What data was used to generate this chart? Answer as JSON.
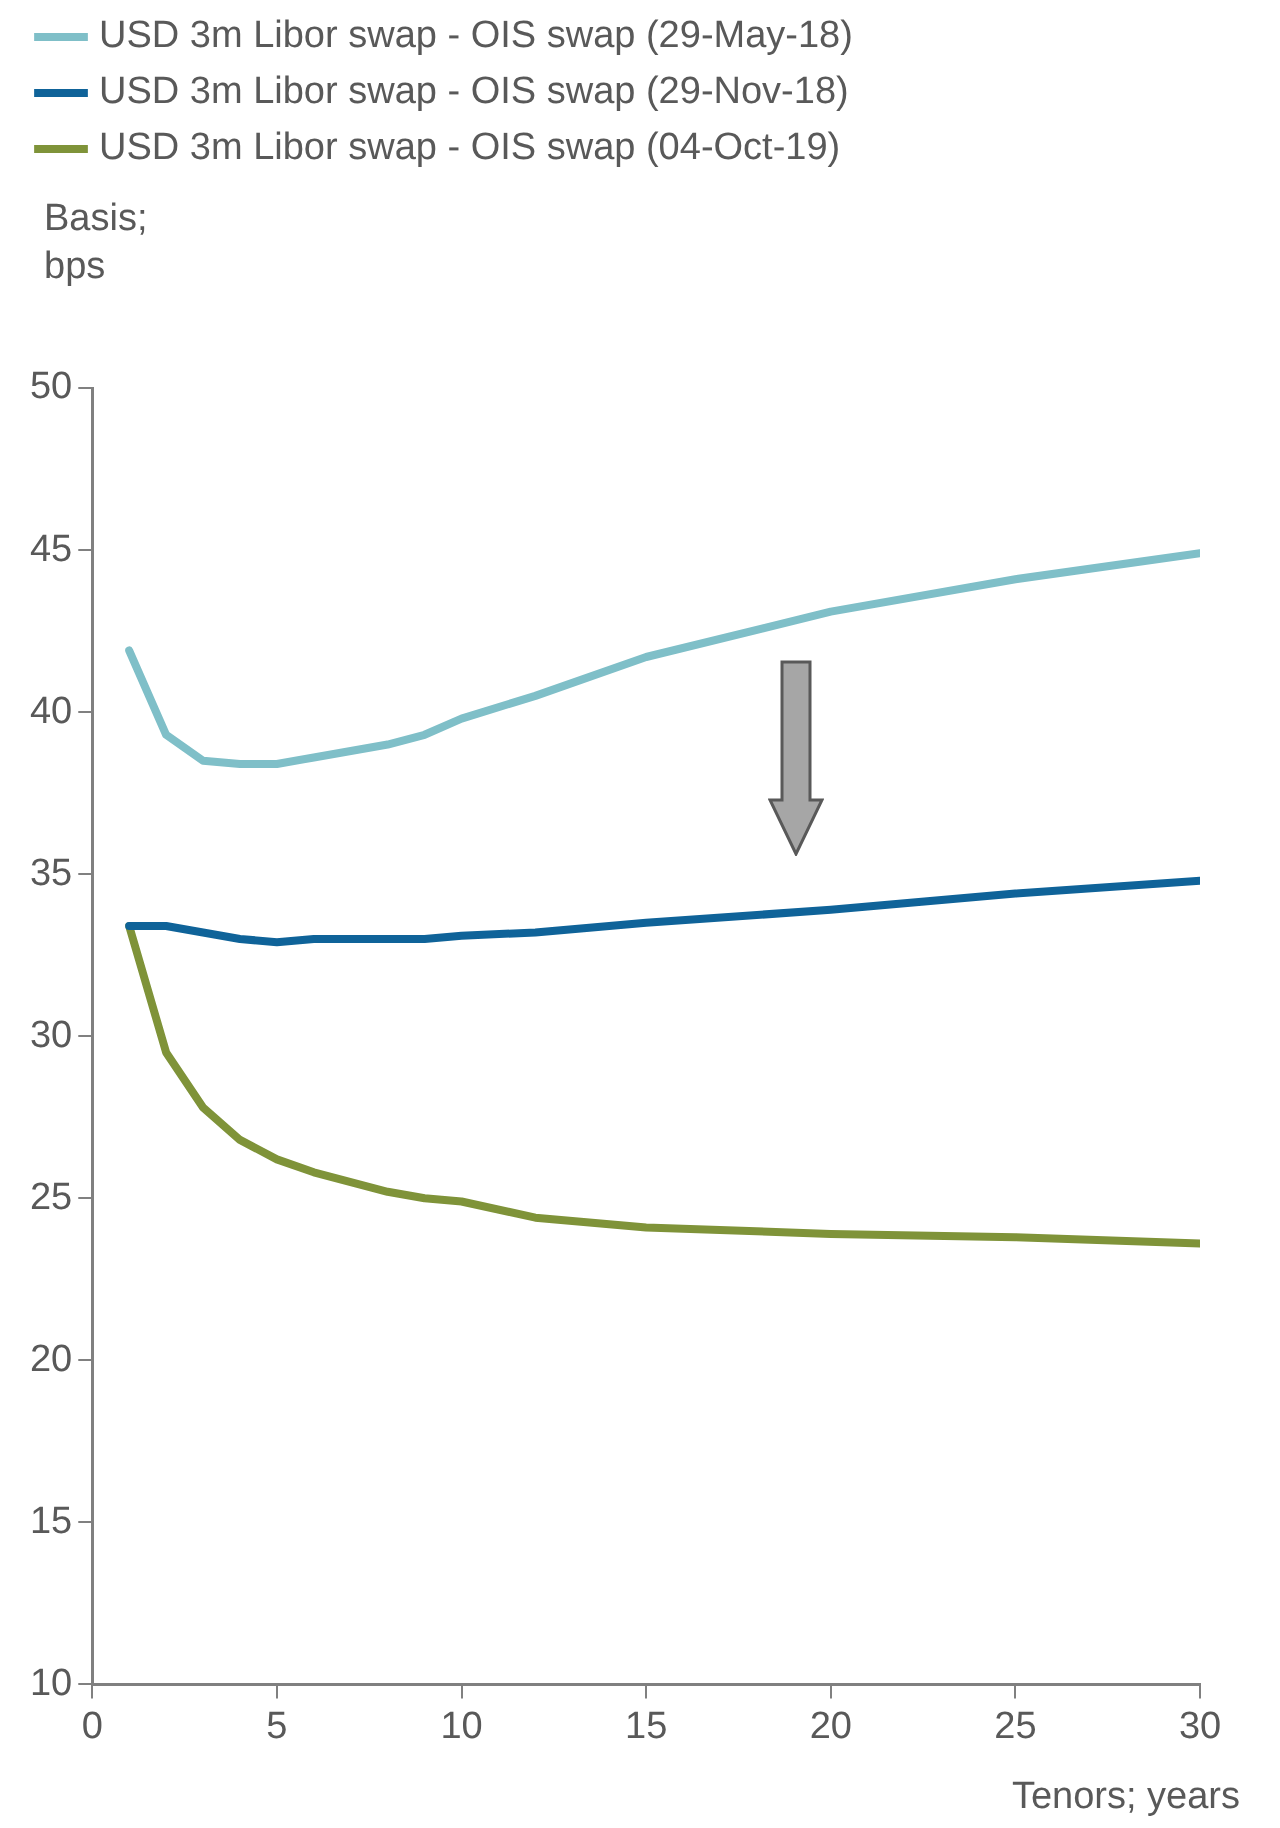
{
  "chart_data": {
    "type": "line",
    "xlabel": "Tenors; years",
    "ylabel": "Basis; bps",
    "x": [
      1,
      2,
      3,
      4,
      5,
      6,
      7,
      8,
      9,
      10,
      12,
      15,
      20,
      25,
      30
    ],
    "series": [
      {
        "name": "USD 3m Libor swap - OIS swap (29-May-18)",
        "color": "#7fbfc8",
        "values": [
          41.9,
          39.3,
          38.5,
          38.4,
          38.4,
          38.6,
          38.8,
          39.0,
          39.3,
          39.8,
          40.5,
          41.7,
          43.1,
          44.1,
          44.9
        ]
      },
      {
        "name": "USD 3m Libor swap - OIS swap (29-Nov-18)",
        "color": "#0f6399",
        "values": [
          33.4,
          33.4,
          33.2,
          33.0,
          32.9,
          33.0,
          33.0,
          33.0,
          33.0,
          33.1,
          33.2,
          33.5,
          33.9,
          34.4,
          34.8
        ]
      },
      {
        "name": "USD 3m Libor swap - OIS swap (04-Oct-19)",
        "color": "#7f9339",
        "values": [
          33.4,
          29.5,
          27.8,
          26.8,
          26.2,
          25.8,
          25.5,
          25.2,
          25.0,
          24.9,
          24.4,
          24.1,
          23.9,
          23.8,
          23.6
        ]
      }
    ],
    "xlim": [
      0,
      30
    ],
    "xticks": [
      0,
      5,
      10,
      15,
      20,
      25,
      30
    ],
    "ylim": [
      10,
      50
    ],
    "yticks": [
      10,
      15,
      20,
      25,
      30,
      35,
      40,
      45,
      50
    ],
    "grid": false,
    "legend": "top",
    "marker": "none",
    "line_style": "solid"
  }
}
